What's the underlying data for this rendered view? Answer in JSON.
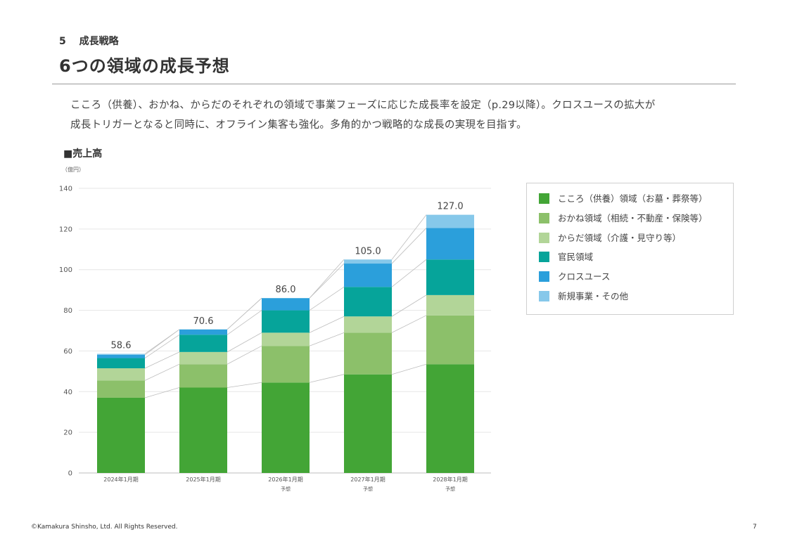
{
  "header": {
    "section_number": "5",
    "section_title": "成長戦略",
    "page_title": "6つの領域の成長予想"
  },
  "description": {
    "line1": "こころ（供養）、おかね、からだのそれぞれの領域で事業フェーズに応じた成長率を設定（p.29以降）。クロスユースの拡大が",
    "line2": "成長トリガーとなると同時に、オフライン集客も強化。多角的かつ戦略的な成長の実現を目指す。"
  },
  "chart_heading": "■売上高",
  "chart_unit": "（億円）",
  "chart_data": {
    "type": "bar",
    "stacked": true,
    "ylim": [
      0,
      140
    ],
    "yticks": [
      0,
      20,
      40,
      60,
      80,
      100,
      120,
      140
    ],
    "grid": true,
    "legend_position": "right",
    "categories": [
      {
        "label": "2024年1月期",
        "sub": ""
      },
      {
        "label": "2025年1月期",
        "sub": ""
      },
      {
        "label": "2026年1月期",
        "sub": "予想"
      },
      {
        "label": "2027年1月期",
        "sub": "予想"
      },
      {
        "label": "2028年1月期",
        "sub": "予想"
      }
    ],
    "totals": [
      "58.6",
      "70.6",
      "86.0",
      "105.0",
      "127.0"
    ],
    "series": [
      {
        "name": "こころ（供養）領域（お墓・葬祭等）",
        "color": "#43a536",
        "values": [
          37.0,
          42.0,
          44.5,
          48.5,
          53.5
        ]
      },
      {
        "name": "おかね領域（相続・不動産・保険等）",
        "color": "#8cc06a",
        "values": [
          8.5,
          11.5,
          18.0,
          20.5,
          24.0
        ]
      },
      {
        "name": "からだ領域（介護・見守り等）",
        "color": "#b2d598",
        "values": [
          6.0,
          6.0,
          6.5,
          8.0,
          10.0
        ]
      },
      {
        "name": "官民領域",
        "color": "#06a49a",
        "values": [
          5.0,
          8.5,
          11.0,
          14.5,
          17.5
        ]
      },
      {
        "name": "クロスユース",
        "color": "#2b9fdb",
        "values": [
          1.6,
          2.6,
          6.0,
          11.5,
          15.5
        ]
      },
      {
        "name": "新規事業・その他",
        "color": "#86c8ea",
        "values": [
          0.5,
          0.0,
          0.0,
          2.0,
          6.5
        ]
      }
    ]
  },
  "footer": {
    "copyright": "©Kamakura Shinsho, Ltd. All Rights Reserved.",
    "page_number": "7"
  }
}
